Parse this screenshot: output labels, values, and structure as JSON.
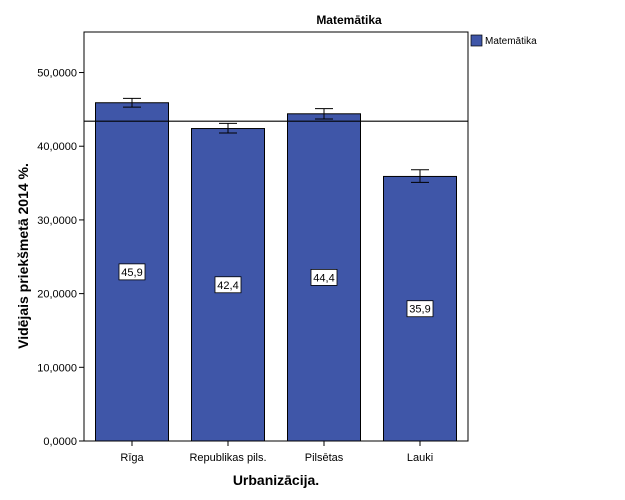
{
  "chart_data": {
    "type": "bar",
    "title": "Matemātika",
    "xlabel": "Urbanizācija.",
    "ylabel": "Vidējais priekšmetā 2014 %.",
    "categories": [
      "Rīga",
      "Republikas pils.",
      "Pilsētas",
      "Lauki"
    ],
    "series": [
      {
        "name": "Matemātika",
        "values": [
          45.9,
          42.4,
          44.4,
          35.9
        ],
        "data_labels": [
          "45,9",
          "42,4",
          "44,4",
          "35,9"
        ],
        "error_low": [
          45.3,
          41.8,
          43.7,
          35.1
        ],
        "error_high": [
          46.5,
          43.1,
          45.1,
          36.8
        ],
        "color": "#3f56a8"
      }
    ],
    "reference_line": 43.4,
    "ylim": [
      0,
      55.5
    ],
    "yticks": [
      0,
      10,
      20,
      30,
      40,
      50
    ],
    "ytick_labels": [
      "0,0000",
      "10,0000",
      "20,0000",
      "30,0000",
      "40,0000",
      "50,0000"
    ],
    "legend_position": "top-right",
    "grid": false
  }
}
